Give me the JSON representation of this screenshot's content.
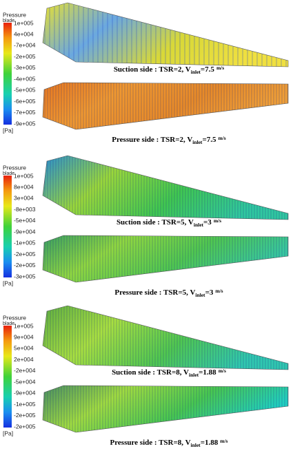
{
  "groups": [
    {
      "legend": {
        "title": "Pressure",
        "subtitle": "blade",
        "labels": [
          "1e+005",
          "4e+004",
          "-7e+004",
          "-2e+005",
          "-3e+005",
          "-4e+005",
          "-5e+005",
          "-6e+005",
          "-7e+005",
          "-9e+005"
        ],
        "unit": "[Pa]"
      },
      "panels": [
        {
          "caption": {
            "text": "Suction side : TSR=2, V",
            "sub": "inlet",
            "rest": "=7.5",
            "unit": "m/s"
          }
        },
        {
          "caption": {
            "text": "Pressure side : TSR=2, V",
            "sub": "inlet",
            "rest": "=7.5",
            "unit": "m/s"
          }
        }
      ]
    },
    {
      "legend": {
        "title": "Pressure",
        "subtitle": "blade",
        "labels": [
          "1e+005",
          "8e+004",
          "3e+004",
          "-8e+003",
          "-5e+004",
          "-9e+004",
          "-1e+005",
          "-2e+005",
          "-2e+005",
          "-3e+005"
        ],
        "unit": "[Pa]"
      },
      "panels": [
        {
          "caption": {
            "text": "Suction side : TSR=5, V",
            "sub": "inlet",
            "rest": "=3",
            "unit": "m/s"
          }
        },
        {
          "caption": {
            "text": "Pressure side : TSR=5, V",
            "sub": "inlet",
            "rest": "=3",
            "unit": "m/s"
          }
        }
      ]
    },
    {
      "legend": {
        "title": "Pressure",
        "subtitle": "blade",
        "labels": [
          "1e+005",
          "9e+004",
          "5e+004",
          "2e+004",
          "-2e+004",
          "-5e+004",
          "-9e+004",
          "-1e+005",
          "-2e+005",
          "-2e+005"
        ],
        "unit": "[Pa]"
      },
      "panels": [
        {
          "caption": {
            "text": "Suction side : TSR=8, V",
            "sub": "inlet",
            "rest": "=1.88",
            "unit": "m/s"
          }
        },
        {
          "caption": {
            "text": "Pressure side : TSR=8, V",
            "sub": "inlet",
            "rest": "=1.88",
            "unit": "m/s"
          }
        }
      ]
    }
  ]
}
